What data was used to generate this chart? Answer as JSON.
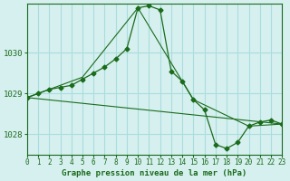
{
  "title": "Graphe pression niveau de la mer (hPa)",
  "background_color": "#d6f0f0",
  "grid_color": "#aadddd",
  "line_color": "#1a6b1a",
  "xlim": [
    0,
    23
  ],
  "ylim": [
    1027.5,
    1031.2
  ],
  "yticks": [
    1028,
    1029,
    1030
  ],
  "xticks": [
    0,
    1,
    2,
    3,
    4,
    5,
    6,
    7,
    8,
    9,
    10,
    11,
    12,
    13,
    14,
    15,
    16,
    17,
    18,
    19,
    20,
    21,
    22,
    23
  ],
  "series1_x": [
    0,
    1,
    2,
    3,
    4,
    5,
    6,
    7,
    8,
    9,
    10,
    11,
    12,
    13,
    14,
    15,
    16,
    17,
    18,
    19,
    20,
    21,
    22,
    23
  ],
  "series1_y": [
    1028.9,
    1029.0,
    1029.1,
    1029.15,
    1029.2,
    1029.35,
    1029.5,
    1029.65,
    1029.85,
    1030.1,
    1031.1,
    1031.15,
    1031.05,
    1029.55,
    1029.3,
    1028.85,
    1028.6,
    1027.75,
    1027.65,
    1027.8,
    1028.2,
    1028.3,
    1028.35,
    1028.25
  ],
  "series2_x": [
    0,
    5,
    10,
    15,
    20,
    23
  ],
  "series2_y": [
    1028.9,
    1029.4,
    1031.1,
    1028.85,
    1028.2,
    1028.25
  ],
  "series3_x": [
    0,
    23
  ],
  "series3_y": [
    1028.9,
    1028.25
  ]
}
